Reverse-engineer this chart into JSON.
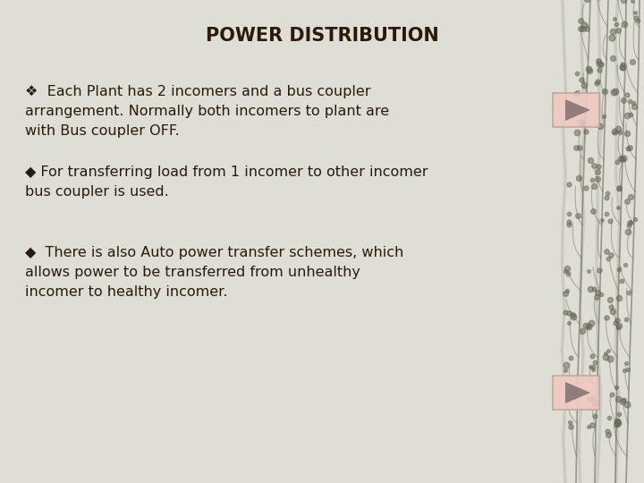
{
  "title": "POWER DISTRIBUTION",
  "title_fontsize": 15,
  "title_fontweight": "bold",
  "title_color": "#2a1a0a",
  "bg_color": "#deded6",
  "text_color": "#2a1a0a",
  "bullet1_marker": "❖",
  "bullet1_line1": "❖  Each Plant has 2 incomers and a bus coupler",
  "bullet1_line2": "arrangement. Normally both incomers to plant are",
  "bullet1_line3": "with Bus coupler OFF.",
  "bullet2_line1": "◆ For transferring load from 1 incomer to other incomer",
  "bullet2_line2": "bus coupler is used.",
  "bullet3_line1": "◆  There is also Auto power transfer schemes, which",
  "bullet3_line2": "allows power to be transferred from unhealthy",
  "bullet3_line3": "incomer to healthy incomer.",
  "body_fontsize": 11.5,
  "btn_face_color": "#f0c8c0",
  "btn_edge_color": "#c0a098",
  "arrow_fill_color": "#807070",
  "branch_color": "#5a5a4a",
  "berry_color": "#6a6a5a"
}
